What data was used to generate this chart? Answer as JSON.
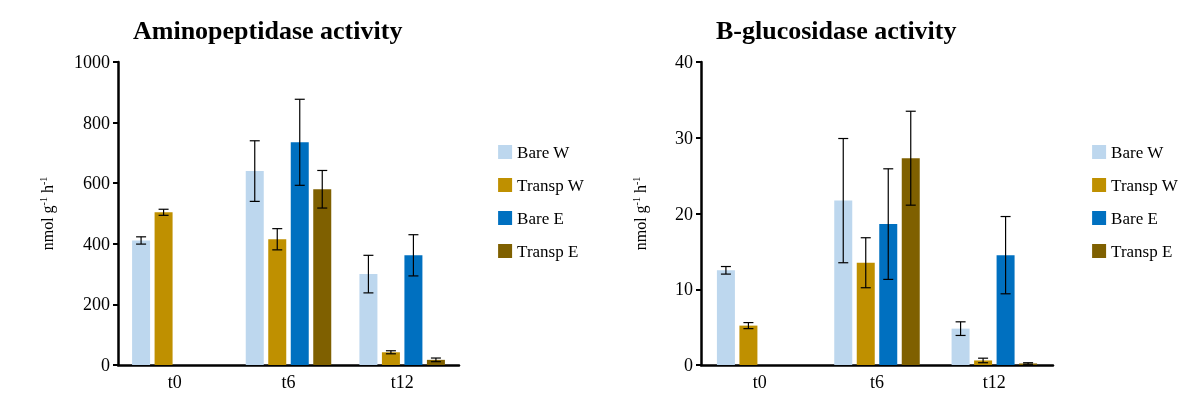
{
  "chart_data": [
    {
      "type": "bar",
      "title": "Aminopeptidase activity",
      "ylabel": "nmol g$^{-1}$ h$^{-1}$",
      "categories": [
        "t0",
        "t6",
        "t12"
      ],
      "ylim": [
        0,
        1000
      ],
      "yticks": [
        0,
        200,
        400,
        600,
        800,
        1000
      ],
      "grid": false,
      "legend": "right",
      "series": [
        {
          "name": "Bare W",
          "color": "#bdd7ee",
          "values": [
            411,
            640,
            300
          ],
          "errors": [
            12,
            100,
            62
          ]
        },
        {
          "name": "Transp W",
          "color": "#bf9000",
          "values": [
            504,
            415,
            42
          ],
          "errors": [
            10,
            35,
            5
          ]
        },
        {
          "name": "Bare E",
          "color": "#0070c0",
          "values": [
            null,
            735,
            362
          ],
          "errors": [
            null,
            142,
            68
          ]
        },
        {
          "name": "Transp E",
          "color": "#7f6000",
          "values": [
            null,
            580,
            17
          ],
          "errors": [
            null,
            62,
            6
          ]
        }
      ]
    },
    {
      "type": "bar",
      "title": "B-glucosidase activity",
      "ylabel": "nmol g$^{-1}$ h$^{-1}$",
      "categories": [
        "t0",
        "t6",
        "t12"
      ],
      "ylim": [
        0,
        40
      ],
      "yticks": [
        0,
        10,
        20,
        30,
        40
      ],
      "grid": false,
      "legend": "right",
      "series": [
        {
          "name": "Bare W",
          "color": "#bdd7ee",
          "values": [
            12.5,
            21.7,
            4.8
          ],
          "errors": [
            0.5,
            8.2,
            0.9
          ]
        },
        {
          "name": "Transp W",
          "color": "#bf9000",
          "values": [
            5.2,
            13.5,
            0.6
          ],
          "errors": [
            0.4,
            3.3,
            0.3
          ]
        },
        {
          "name": "Bare E",
          "color": "#0070c0",
          "values": [
            null,
            18.6,
            14.5
          ],
          "errors": [
            null,
            7.3,
            5.1
          ]
        },
        {
          "name": "Transp E",
          "color": "#7f6000",
          "values": [
            null,
            27.3,
            0.2
          ],
          "errors": [
            null,
            6.2,
            0.1
          ]
        }
      ]
    }
  ]
}
